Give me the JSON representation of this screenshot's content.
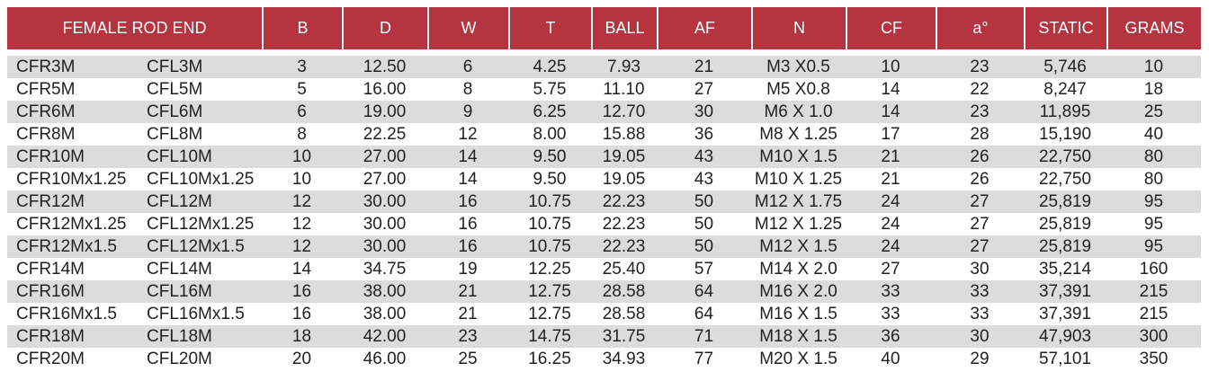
{
  "table": {
    "header": [
      "FEMALE ROD END",
      "B",
      "D",
      "W",
      "T",
      "BALL",
      "AF",
      "N",
      "CF",
      "a°",
      "STATIC",
      "GRAMS"
    ],
    "rows": [
      [
        "CFR3M",
        "CFL3M",
        "3",
        "12.50",
        "6",
        "4.25",
        "7.93",
        "21",
        "M3 X0.5",
        "10",
        "23",
        "5,746",
        "10"
      ],
      [
        "CFR5M",
        "CFL5M",
        "5",
        "16.00",
        "8",
        "5.75",
        "11.10",
        "27",
        "M5 X0.8",
        "14",
        "22",
        "8,247",
        "18"
      ],
      [
        "CFR6M",
        "CFL6M",
        "6",
        "19.00",
        "9",
        "6.25",
        "12.70",
        "30",
        "M6 X 1.0",
        "14",
        "23",
        "11,895",
        "25"
      ],
      [
        "CFR8M",
        "CFL8M",
        "8",
        "22.25",
        "12",
        "8.00",
        "15.88",
        "36",
        "M8 X 1.25",
        "17",
        "28",
        "15,190",
        "40"
      ],
      [
        "CFR10M",
        "CFL10M",
        "10",
        "27.00",
        "14",
        "9.50",
        "19.05",
        "43",
        "M10 X 1.5",
        "21",
        "26",
        "22,750",
        "80"
      ],
      [
        "CFR10Mx1.25",
        "CFL10Mx1.25",
        "10",
        "27.00",
        "14",
        "9.50",
        "19.05",
        "43",
        "M10 X 1.25",
        "21",
        "26",
        "22,750",
        "80"
      ],
      [
        "CFR12M",
        "CFL12M",
        "12",
        "30.00",
        "16",
        "10.75",
        "22.23",
        "50",
        "M12 X 1.75",
        "24",
        "27",
        "25,819",
        "95"
      ],
      [
        "CFR12Mx1.25",
        "CFL12Mx1.25",
        "12",
        "30.00",
        "16",
        "10.75",
        "22.23",
        "50",
        "M12 X 1.25",
        "24",
        "27",
        "25,819",
        "95"
      ],
      [
        "CFR12Mx1.5",
        "CFL12Mx1.5",
        "12",
        "30.00",
        "16",
        "10.75",
        "22.23",
        "50",
        "M12 X 1.5",
        "24",
        "27",
        "25,819",
        "95"
      ],
      [
        "CFR14M",
        "CFL14M",
        "14",
        "34.75",
        "19",
        "12.25",
        "25.40",
        "57",
        "M14 X 2.0",
        "27",
        "30",
        "35,214",
        "160"
      ],
      [
        "CFR16M",
        "CFL16M",
        "16",
        "38.00",
        "21",
        "12.75",
        "28.58",
        "64",
        "M16 X 2.0",
        "33",
        "33",
        "37,391",
        "215"
      ],
      [
        "CFR16Mx1.5",
        "CFL16Mx1.5",
        "16",
        "38.00",
        "21",
        "12.75",
        "28.58",
        "64",
        "M16 X 1.5",
        "33",
        "33",
        "37,391",
        "215"
      ],
      [
        "CFR18M",
        "CFL18M",
        "18",
        "42.00",
        "23",
        "14.75",
        "31.75",
        "71",
        "M18 X 1.5",
        "36",
        "30",
        "47,903",
        "300"
      ],
      [
        "CFR20M",
        "CFL20M",
        "20",
        "46.00",
        "25",
        "16.25",
        "34.93",
        "77",
        "M20 X 1.5",
        "40",
        "29",
        "57,101",
        "350"
      ]
    ]
  }
}
